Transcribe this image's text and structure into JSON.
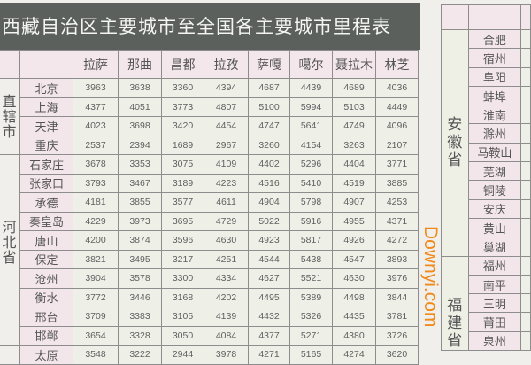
{
  "title": "西藏自治区主要城市至全国各主要城市里程表",
  "columns": [
    "拉萨",
    "那曲",
    "昌都",
    "拉孜",
    "萨嘎",
    "噶尔",
    "聂拉木",
    "林芝"
  ],
  "groups": [
    {
      "name": "直辖市",
      "rows": [
        {
          "city": "北京",
          "values": [
            3963,
            3638,
            3360,
            4394,
            4687,
            4439,
            4689,
            4036
          ]
        },
        {
          "city": "上海",
          "values": [
            4377,
            4051,
            3773,
            4807,
            5100,
            5994,
            5103,
            4449
          ]
        },
        {
          "city": "天津",
          "values": [
            4023,
            3698,
            3420,
            4454,
            4747,
            5641,
            4749,
            4096
          ]
        },
        {
          "city": "重庆",
          "values": [
            2537,
            2394,
            1689,
            2967,
            3260,
            4154,
            3263,
            2107
          ]
        }
      ]
    },
    {
      "name": "河北省",
      "rows": [
        {
          "city": "石家庄",
          "values": [
            3678,
            3353,
            3075,
            4109,
            4402,
            5296,
            4404,
            3771
          ]
        },
        {
          "city": "张家口",
          "values": [
            3793,
            3467,
            3189,
            4223,
            4516,
            5410,
            4519,
            3885
          ]
        },
        {
          "city": "承德",
          "values": [
            4181,
            3855,
            3577,
            4611,
            4904,
            5798,
            4907,
            4253
          ]
        },
        {
          "city": "秦皇岛",
          "values": [
            4229,
            3973,
            3695,
            4729,
            5022,
            5916,
            4955,
            4371
          ]
        },
        {
          "city": "唐山",
          "values": [
            4200,
            3874,
            3596,
            4630,
            4923,
            5817,
            4926,
            4272
          ]
        },
        {
          "city": "保定",
          "values": [
            3821,
            3495,
            3217,
            4251,
            4544,
            5438,
            4547,
            3893
          ]
        },
        {
          "city": "沧州",
          "values": [
            3904,
            3578,
            3300,
            4334,
            4627,
            5521,
            4630,
            3976
          ]
        },
        {
          "city": "衡水",
          "values": [
            3772,
            3446,
            3168,
            4202,
            4495,
            5389,
            4498,
            3844
          ]
        },
        {
          "city": "邢台",
          "values": [
            3709,
            3383,
            3105,
            4139,
            4432,
            5326,
            4435,
            3781
          ]
        },
        {
          "city": "邯郸",
          "values": [
            3654,
            3328,
            3050,
            4084,
            4377,
            5271,
            4380,
            3726
          ]
        }
      ]
    },
    {
      "name": "",
      "rows": [
        {
          "city": "太原",
          "values": [
            3548,
            3222,
            2944,
            3978,
            4271,
            5165,
            4274,
            3620
          ]
        }
      ]
    }
  ],
  "side_groups": [
    {
      "name": "安徽省",
      "cities": [
        "合肥",
        "宿州",
        "阜阳",
        "蚌埠",
        "淮南",
        "滁州",
        "马鞍山",
        "芜湖",
        "铜陵",
        "安庆",
        "黄山",
        "巢湖"
      ]
    },
    {
      "name": "福建省",
      "cities": [
        "福州",
        "南平",
        "三明",
        "莆田",
        "泉州"
      ]
    }
  ],
  "watermark": "Downyi.com"
}
